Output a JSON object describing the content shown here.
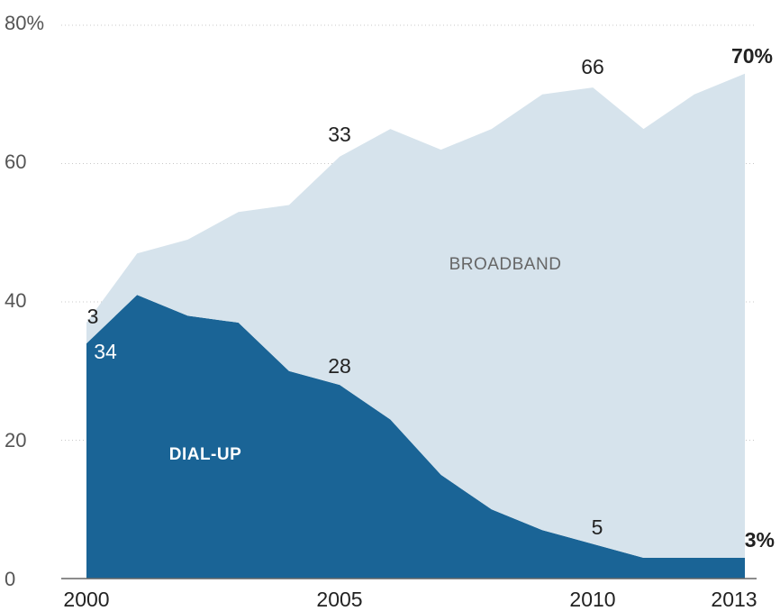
{
  "chart_data": {
    "type": "area",
    "x": [
      2000,
      2001,
      2002,
      2003,
      2004,
      2005,
      2006,
      2007,
      2008,
      2009,
      2010,
      2011,
      2012,
      2013
    ],
    "series": [
      {
        "name": "DIAL-UP",
        "values": [
          34,
          41,
          38,
          37,
          30,
          28,
          23,
          15,
          10,
          7,
          5,
          3,
          3,
          3
        ],
        "color": "#1a6496"
      },
      {
        "name": "BROADBAND",
        "values": [
          3,
          6,
          11,
          16,
          24,
          33,
          42,
          47,
          55,
          63,
          66,
          62,
          67,
          70
        ],
        "color": "#d6e3ec"
      }
    ],
    "stacked": true,
    "ylim": [
      0,
      80
    ],
    "yticks": [
      "0",
      "20",
      "40",
      "60",
      "80%"
    ],
    "xticks": [
      "2000",
      "2005",
      "2010",
      "2013"
    ],
    "grid": "dotted horizontal",
    "data_labels": {
      "dialup": [
        "34",
        "28",
        "5",
        "3%"
      ],
      "broadband": [
        "3",
        "33",
        "66",
        "70%"
      ]
    }
  }
}
